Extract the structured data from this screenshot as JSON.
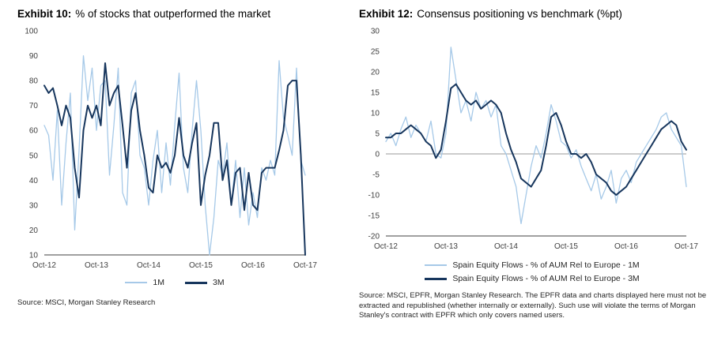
{
  "colors": {
    "series_1m": "#a6c9e8",
    "series_3m": "#17365d",
    "axis": "#404040",
    "zero_line": "#999999",
    "tick_text": "#404040"
  },
  "chart_data": [
    {
      "type": "line",
      "exhibit_label": "Exhibit 10:",
      "title": "% of stocks that outperformed the market",
      "xlabel": "",
      "ylabel": "",
      "ylim": [
        10,
        100
      ],
      "y_ticks": [
        10,
        20,
        30,
        40,
        50,
        60,
        70,
        80,
        90,
        100
      ],
      "x_tick_labels": [
        "Oct-12",
        "Oct-13",
        "Oct-14",
        "Oct-15",
        "Oct-16",
        "Oct-17"
      ],
      "x_months_span": 60,
      "grid": false,
      "zero_line": false,
      "legend_layout": "row",
      "legend_position": "bottom",
      "series": [
        {
          "name": "1M",
          "color_key": "series_1m",
          "values": [
            62,
            58,
            40,
            68,
            30,
            55,
            75,
            20,
            52,
            90,
            72,
            85,
            60,
            78,
            80,
            42,
            62,
            85,
            35,
            30,
            75,
            80,
            50,
            45,
            30,
            48,
            60,
            35,
            55,
            38,
            62,
            83,
            45,
            35,
            60,
            80,
            60,
            30,
            10,
            25,
            48,
            42,
            55,
            30,
            48,
            25,
            45,
            22,
            35,
            25,
            45,
            40,
            48,
            42,
            88,
            65,
            58,
            50,
            85,
            48,
            42
          ]
        },
        {
          "name": "3M",
          "color_key": "series_3m",
          "values": [
            78,
            75,
            77,
            70,
            62,
            70,
            65,
            45,
            33,
            60,
            70,
            65,
            70,
            62,
            87,
            70,
            75,
            78,
            62,
            45,
            68,
            75,
            60,
            50,
            37,
            35,
            50,
            45,
            47,
            43,
            50,
            65,
            50,
            45,
            55,
            63,
            30,
            42,
            50,
            63,
            63,
            40,
            48,
            30,
            43,
            45,
            28,
            43,
            30,
            28,
            43,
            45,
            45,
            45,
            52,
            60,
            78,
            80,
            80,
            50,
            10
          ]
        }
      ],
      "source": "Source: MSCI, Morgan Stanley Research"
    },
    {
      "type": "line",
      "exhibit_label": "Exhibit 12:",
      "title": "Consensus positioning vs benchmark (%pt)",
      "xlabel": "",
      "ylabel": "",
      "ylim": [
        -20,
        30
      ],
      "y_ticks": [
        -20,
        -15,
        -10,
        -5,
        0,
        5,
        10,
        15,
        20,
        25,
        30
      ],
      "x_tick_labels": [
        "Oct-12",
        "Oct-13",
        "Oct-14",
        "Oct-15",
        "Oct-16",
        "Oct-17"
      ],
      "x_months_span": 60,
      "grid": false,
      "zero_line": true,
      "legend_layout": "column",
      "legend_position": "bottom",
      "series": [
        {
          "name": "Spain Equity Flows - % of AUM Rel to Europe - 1M",
          "color_key": "series_1m",
          "values": [
            3,
            5,
            2,
            6,
            9,
            4,
            7,
            5,
            3,
            8,
            0,
            -1,
            5,
            26,
            18,
            10,
            13,
            8,
            15,
            11,
            13,
            9,
            12,
            2,
            0,
            -4,
            -8,
            -17,
            -10,
            -3,
            2,
            -1,
            5,
            12,
            8,
            3,
            2,
            -1,
            1,
            -3,
            -6,
            -9,
            -5,
            -11,
            -8,
            -4,
            -12,
            -6,
            -4,
            -7,
            -2,
            0,
            2,
            4,
            6,
            9,
            10,
            6,
            4,
            2,
            -8
          ]
        },
        {
          "name": "Spain Equity Flows - % of AUM Rel to Europe - 3M",
          "color_key": "series_3m",
          "values": [
            4,
            4,
            5,
            5,
            6,
            7,
            6,
            5,
            3,
            2,
            -1,
            1,
            8,
            16,
            17,
            15,
            13,
            12,
            13,
            11,
            12,
            13,
            12,
            10,
            5,
            1,
            -2,
            -6,
            -7,
            -8,
            -6,
            -4,
            2,
            9,
            10,
            7,
            3,
            0,
            0,
            -1,
            0,
            -2,
            -5,
            -6,
            -7,
            -9,
            -10,
            -9,
            -8,
            -6,
            -4,
            -2,
            0,
            2,
            4,
            6,
            7,
            8,
            7,
            3,
            1
          ]
        }
      ],
      "source": "Source: MSCI, EPFR, Morgan Stanley Research. The EPFR data and charts displayed here must not be extracted and republished (whether internally or externally). Such use will violate the terms of Morgan Stanley's contract with EPFR which only covers named users."
    }
  ]
}
